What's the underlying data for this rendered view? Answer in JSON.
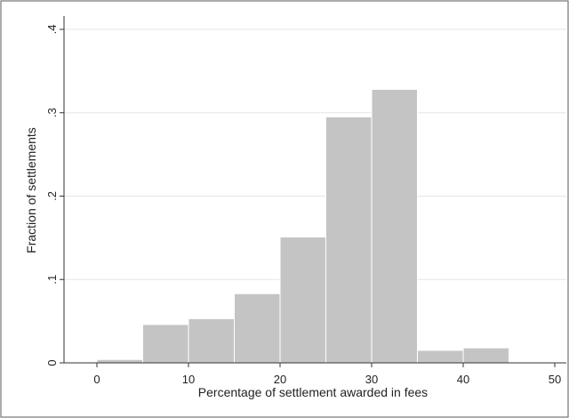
{
  "chart_data": {
    "type": "bar",
    "title": "",
    "xlabel": "Percentage of settlement awarded in fees",
    "ylabel": "Fraction of settlements",
    "xlim": [
      -5,
      50
    ],
    "ylim": [
      0,
      0.4
    ],
    "x_ticks": [
      0,
      10,
      20,
      30,
      40,
      50
    ],
    "y_ticks": [
      {
        "value": 0,
        "label": "0"
      },
      {
        "value": 0.1,
        "label": ".1"
      },
      {
        "value": 0.2,
        "label": ".2"
      },
      {
        "value": 0.3,
        "label": ".3"
      },
      {
        "value": 0.4,
        "label": ".4"
      }
    ],
    "grid": true,
    "bar_color": "#c4c4c4",
    "bins": [
      {
        "start": 0,
        "end": 5,
        "value": 0.004
      },
      {
        "start": 5,
        "end": 10,
        "value": 0.046
      },
      {
        "start": 10,
        "end": 15,
        "value": 0.053
      },
      {
        "start": 15,
        "end": 20,
        "value": 0.083
      },
      {
        "start": 20,
        "end": 25,
        "value": 0.151
      },
      {
        "start": 25,
        "end": 30,
        "value": 0.295
      },
      {
        "start": 30,
        "end": 35,
        "value": 0.328
      },
      {
        "start": 35,
        "end": 40,
        "value": 0.015
      },
      {
        "start": 40,
        "end": 45,
        "value": 0.018
      }
    ]
  }
}
